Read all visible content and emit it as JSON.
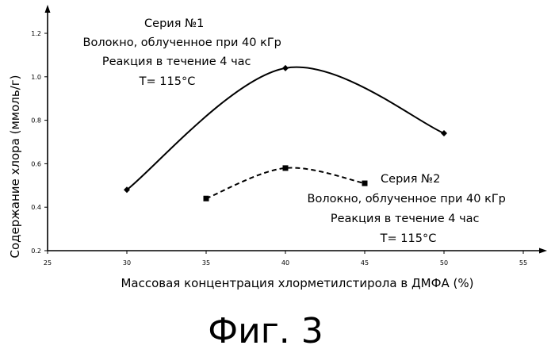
{
  "chart_data": {
    "type": "line",
    "xlabel": "Массовая концентрация хлорметилстирола в ДМФА (%)",
    "ylabel": "Содержание хлора (ммоль/г)",
    "xlim": [
      25,
      55
    ],
    "ylim": [
      0.2,
      1.3
    ],
    "x_ticks": [
      "25",
      "30",
      "35",
      "40",
      "45",
      "50",
      "55"
    ],
    "y_ticks": [
      "0.2",
      "0.4",
      "0.6",
      "0.8",
      "1.0",
      "1.2"
    ],
    "grid": false,
    "series": [
      {
        "name": "Серия №1",
        "marker": "diamond",
        "line_style": "solid",
        "smooth": true,
        "x": [
          30,
          40,
          50
        ],
        "y": [
          0.48,
          1.04,
          0.74
        ]
      },
      {
        "name": "Серия №2",
        "marker": "square",
        "line_style": "dashed",
        "smooth": true,
        "x": [
          35,
          40,
          45
        ],
        "y": [
          0.44,
          0.58,
          0.51
        ]
      }
    ],
    "annotations": [
      {
        "series": "Серия №1",
        "lines": [
          "Серия №1",
          "Волокно, облученное при 40 кГр",
          "Реакция в течение 4 час",
          "T= 115°C"
        ]
      },
      {
        "series": "Серия №2",
        "lines": [
          "Серия №2",
          "Волокно, облученное при 40 кГр",
          "Реакция в течение 4 час",
          "T= 115°C"
        ]
      }
    ]
  },
  "figure_caption": "Фиг. 3"
}
